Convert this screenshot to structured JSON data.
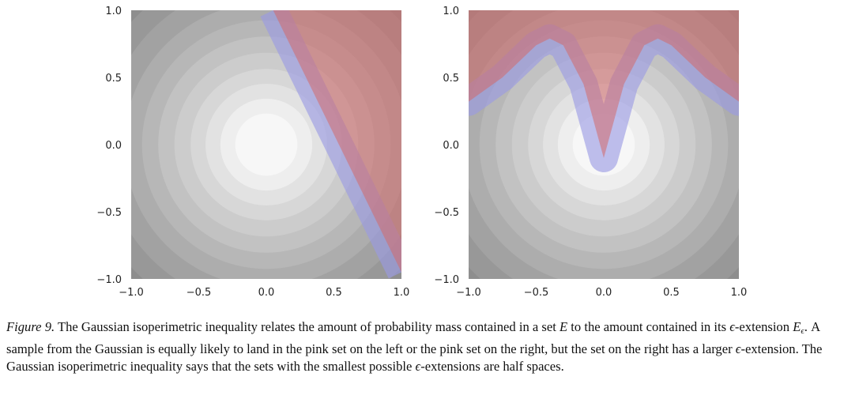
{
  "chart_data": [
    {
      "type": "contour",
      "title": "",
      "xlabel": "",
      "ylabel": "",
      "xlim": [
        -1.0,
        1.0
      ],
      "ylim": [
        -1.0,
        1.0
      ],
      "x_ticks": [
        "−1.0",
        "−0.5",
        "0.0",
        "0.5",
        "1.0"
      ],
      "y_ticks": [
        "1.0",
        "0.5",
        "0.0",
        "−0.5",
        "−1.0"
      ],
      "grid": false,
      "background": "concentric gray Gaussian density levels",
      "set_boundary": [
        [
          0.05,
          1.0
        ],
        [
          1.0,
          -0.95
        ]
      ],
      "set_side": "right",
      "colors": {
        "set": "#d36a6a",
        "extension": "#9a9ae4"
      }
    },
    {
      "type": "contour",
      "title": "",
      "xlabel": "",
      "ylabel": "",
      "xlim": [
        -1.0,
        1.0
      ],
      "ylim": [
        -1.0,
        1.0
      ],
      "x_ticks": [
        "−1.0",
        "−0.5",
        "0.0",
        "0.5",
        "1.0"
      ],
      "y_ticks": [
        "1.0",
        "0.5",
        "0.0",
        "−0.5",
        "−1.0"
      ],
      "grid": false,
      "background": "concentric gray Gaussian density levels",
      "set_boundary": [
        [
          -1.0,
          0.32
        ],
        [
          -0.75,
          0.5
        ],
        [
          -0.5,
          0.74
        ],
        [
          -0.4,
          0.79
        ],
        [
          -0.3,
          0.74
        ],
        [
          -0.15,
          0.45
        ],
        [
          0.0,
          -0.1
        ],
        [
          0.15,
          0.45
        ],
        [
          0.3,
          0.74
        ],
        [
          0.4,
          0.79
        ],
        [
          0.5,
          0.74
        ],
        [
          0.75,
          0.5
        ],
        [
          1.0,
          0.32
        ]
      ],
      "set_side": "above",
      "colors": {
        "set": "#d36a6a",
        "extension": "#9a9ae4"
      }
    }
  ],
  "caption": {
    "label": "Figure 9.",
    "p1": " The Gaussian isoperimetric inequality relates the amount of probability mass contained in a set ",
    "E": "E",
    "p2": " to the amount contained in its ",
    "eps": "ϵ",
    "p3": "-extension ",
    "E2": "E",
    "sub": "ϵ",
    "p4": ". A sample from the Gaussian is equally likely to land in the pink set on the left or the pink set on the right, but the set on the right has a larger ",
    "eps2": "ϵ",
    "p5": "-extension. The Gaussian isoperimetric inequality says that the sets with the smallest possible ",
    "eps3": "ϵ",
    "p6": "-extensions are half spaces."
  }
}
